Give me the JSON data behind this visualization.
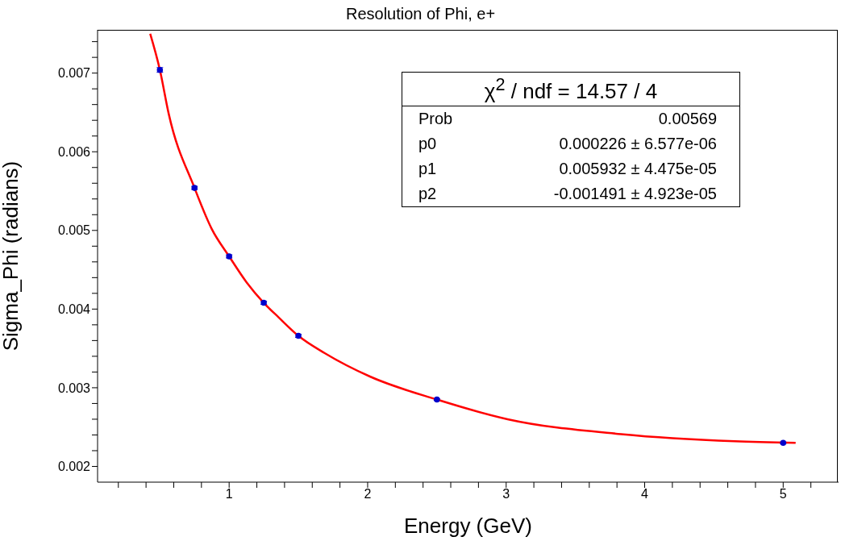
{
  "chart_data": {
    "type": "scatter",
    "title": "Resolution of Phi, e+",
    "xlabel": "Energy (GeV)",
    "ylabel": "Sigma_Phi (radians)",
    "annotations": [
      "χ$^{2}$ / ndf = 14.57 / 4",
      "Prob",
      "0.00569",
      "p0",
      "0.000226 ± 6.577e-06",
      "p1",
      "0.005932 ± 4.475e-05",
      "p2",
      "-0.001491 ± 4.923e-05"
    ],
    "series": [
      {
        "color": "#0000cc",
        "x": [
          0.5,
          0.75,
          1,
          1.25,
          1.5,
          2.5,
          5
        ],
        "values": [
          0.00704,
          0.00554,
          0.00467,
          0.00408,
          0.00366,
          0.00285,
          0.0023
        ],
        "errors": [
          3e-05,
          2e-05,
          2e-05,
          2e-05,
          2e-05,
          1e-05,
          1e-05
        ]
      },
      {
        "type": "line",
        "color": "#ff0000",
        "x": [
          0.43,
          0.5,
          0.564,
          0.75,
          0.874,
          1,
          1.126,
          1.25,
          1.36,
          1.5,
          1.69,
          2.02,
          2.5,
          3.01,
          3.83,
          4.65,
          5.09
        ],
        "values": [
          0.0075,
          0.00704,
          0.00648,
          0.00554,
          0.00502,
          0.00467,
          0.00434,
          0.00408,
          0.00389,
          0.00366,
          0.00344,
          0.00314,
          0.00285,
          0.0026,
          0.00241,
          0.00232,
          0.0023
        ]
      }
    ],
    "xlim": [
      0.05,
      5.4
    ],
    "xticks": [
      {
        "value": 0.2,
        "label": null
      },
      {
        "value": 0.4,
        "label": null
      },
      {
        "value": 0.6,
        "label": null
      },
      {
        "value": 0.8,
        "label": null
      },
      1,
      {
        "value": 1.2,
        "label": null
      },
      {
        "value": 1.4,
        "label": null
      },
      {
        "value": 1.6,
        "label": null
      },
      {
        "value": 1.8,
        "label": null
      },
      2,
      {
        "value": 2.2,
        "label": null
      },
      {
        "value": 2.4,
        "label": null
      },
      {
        "value": 2.6,
        "label": null
      },
      {
        "value": 2.8,
        "label": null
      },
      3,
      {
        "value": 3.2,
        "label": null
      },
      {
        "value": 3.4,
        "label": null
      },
      {
        "value": 3.6,
        "label": null
      },
      {
        "value": 3.8,
        "label": null
      },
      4,
      {
        "value": 4.2,
        "label": null
      },
      {
        "value": 4.4,
        "label": null
      },
      {
        "value": 4.6,
        "label": null
      },
      {
        "value": 4.8,
        "label": null
      },
      5,
      {
        "value": 5.2,
        "label": null
      }
    ],
    "ylim": [
      0.0018,
      0.00755
    ],
    "yticks": [
      0.002,
      {
        "value": 0.0022,
        "label": null
      },
      {
        "value": 0.0024,
        "label": null
      },
      {
        "value": 0.0026,
        "label": null
      },
      {
        "value": 0.0028,
        "label": null
      },
      0.003,
      {
        "value": 0.0032,
        "label": null
      },
      {
        "value": 0.0034,
        "label": null
      },
      {
        "value": 0.0036,
        "label": null
      },
      {
        "value": 0.0038,
        "label": null
      },
      0.004,
      {
        "value": 0.0042,
        "label": null
      },
      {
        "value": 0.0044,
        "label": null
      },
      {
        "value": 0.0046,
        "label": null
      },
      {
        "value": 0.0048,
        "label": null
      },
      0.005,
      {
        "value": 0.0052,
        "label": null
      },
      {
        "value": 0.0054,
        "label": null
      },
      {
        "value": 0.0056,
        "label": null
      },
      {
        "value": 0.0058,
        "label": null
      },
      0.006,
      {
        "value": 0.0062,
        "label": null
      },
      {
        "value": 0.0064,
        "label": null
      },
      {
        "value": 0.0066,
        "label": null
      },
      {
        "value": 0.0068,
        "label": null
      },
      0.007,
      {
        "value": 0.0072,
        "label": null
      },
      {
        "value": 0.0074,
        "label": null
      }
    ],
    "grid": false,
    "legend": false
  }
}
